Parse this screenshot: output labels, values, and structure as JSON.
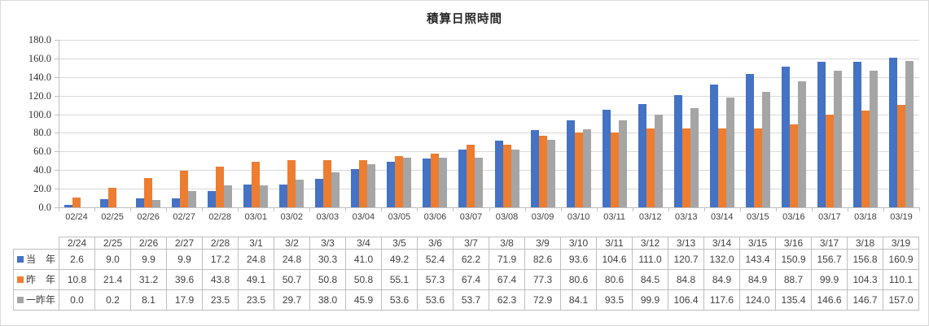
{
  "chart_data": {
    "type": "bar",
    "title": "積算日照時間",
    "xlabel": "",
    "ylabel": "",
    "ylim": [
      0,
      180
    ],
    "ystep": 20,
    "grid": "horizontal-major",
    "legend_position": "data-table-row-headers",
    "y_tick_labels": [
      "180.0",
      "160.0",
      "140.0",
      "120.0",
      "100.0",
      "80.0",
      "60.0",
      "40.0",
      "20.0",
      "0.0"
    ],
    "categories": [
      "02/24",
      "02/25",
      "02/26",
      "02/27",
      "02/28",
      "03/01",
      "03/02",
      "03/03",
      "03/04",
      "03/05",
      "03/06",
      "03/07",
      "03/08",
      "03/09",
      "03/10",
      "03/11",
      "03/12",
      "03/13",
      "03/14",
      "03/15",
      "03/16",
      "03/17",
      "03/18",
      "03/19"
    ],
    "table_categories": [
      "2/24",
      "2/25",
      "2/26",
      "2/27",
      "2/28",
      "3/1",
      "3/2",
      "3/3",
      "3/4",
      "3/5",
      "3/6",
      "3/7",
      "3/8",
      "3/9",
      "3/10",
      "3/11",
      "3/12",
      "3/13",
      "3/14",
      "3/15",
      "3/16",
      "3/17",
      "3/18",
      "3/19"
    ],
    "series": [
      {
        "name": "当　年",
        "color": "#4472C4",
        "values": [
          2.6,
          9.0,
          9.9,
          9.9,
          17.2,
          24.8,
          24.8,
          30.3,
          41.0,
          49.2,
          52.4,
          62.2,
          71.9,
          82.6,
          93.6,
          104.6,
          111.0,
          120.7,
          132.0,
          143.4,
          150.9,
          156.7,
          156.8,
          160.9
        ]
      },
      {
        "name": "昨　年",
        "color": "#ED7D31",
        "values": [
          10.8,
          21.4,
          31.2,
          39.6,
          43.8,
          49.1,
          50.7,
          50.8,
          50.8,
          55.1,
          57.3,
          67.4,
          67.4,
          77.3,
          80.6,
          80.6,
          84.5,
          84.8,
          84.9,
          84.9,
          88.7,
          99.9,
          104.3,
          110.1
        ]
      },
      {
        "name": "一昨年",
        "color": "#A5A5A5",
        "values": [
          0.0,
          0.2,
          8.1,
          17.9,
          23.5,
          23.5,
          29.7,
          38.0,
          45.9,
          53.6,
          53.6,
          53.7,
          62.3,
          72.9,
          84.1,
          93.5,
          99.9,
          106.4,
          117.6,
          124.0,
          135.4,
          146.6,
          146.7,
          157.0
        ]
      }
    ],
    "colors": {
      "gridline": "#D9D9D9",
      "axis_line": "#BFBFBF",
      "table_border": "#BFBFBF",
      "text": "#404040",
      "title_text": "#262626",
      "background": "#FFFFFF"
    }
  }
}
